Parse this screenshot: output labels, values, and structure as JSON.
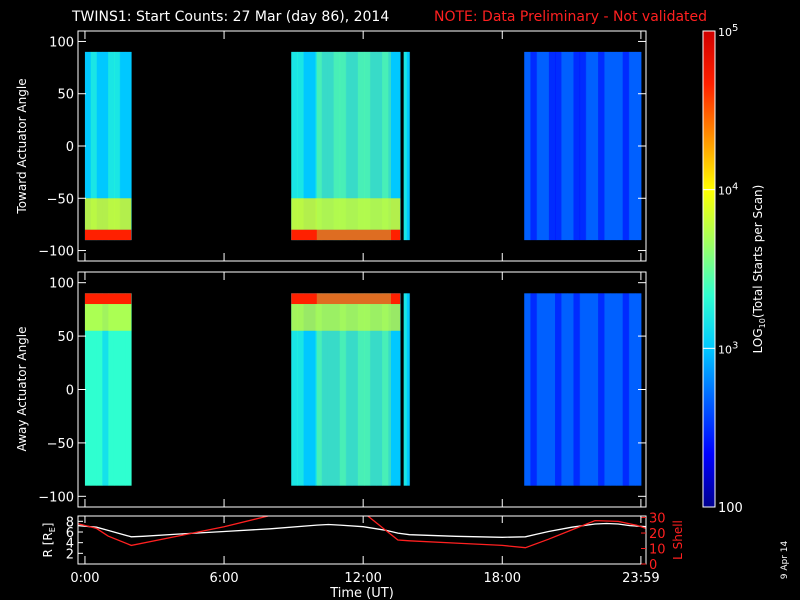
{
  "title": {
    "main": "TWINS1: Start Counts: 27 Mar (day  86), 2014",
    "note": "NOTE: Data Preliminary - Not validated",
    "note_color": "#ff2020"
  },
  "date_stamp": "9 Apr 14",
  "chart_data": [
    {
      "type": "heatmap",
      "name": "toward",
      "ylabel": "Toward Actuator Angle",
      "ylim": [
        -110,
        110
      ],
      "yticks": [
        "100",
        "50",
        "0",
        "−50",
        "−100"
      ],
      "ytick_values": [
        100,
        50,
        0,
        -50,
        -100
      ],
      "angle_range": [
        -90,
        90
      ],
      "x_unit": "hours UT",
      "segments": [
        {
          "x": [
            0.0,
            2.0
          ],
          "level": 3.1,
          "hot_low_edge": true
        },
        {
          "x": [
            8.9,
            13.6
          ],
          "level": 3.15,
          "hot_low_edge": true,
          "gradient_band": [
            10.0,
            13.2
          ]
        },
        {
          "x": [
            13.75,
            14.0
          ],
          "level": 3.1
        },
        {
          "x": [
            18.95,
            23.99
          ],
          "level": 2.55
        }
      ]
    },
    {
      "type": "heatmap",
      "name": "away",
      "ylabel": "Away Actuator Angle",
      "ylim": [
        -110,
        110
      ],
      "yticks": [
        "100",
        "50",
        "0",
        "−50",
        "−100"
      ],
      "ytick_values": [
        100,
        50,
        0,
        -50,
        -100
      ],
      "angle_range": [
        -90,
        90
      ],
      "x_unit": "hours UT",
      "segments": [
        {
          "x": [
            0.0,
            2.0
          ],
          "level": 3.3,
          "hot_high_edge": true
        },
        {
          "x": [
            8.9,
            13.6
          ],
          "level": 3.1,
          "hot_high_edge": true,
          "gradient_band": [
            10.0,
            13.2
          ]
        },
        {
          "x": [
            13.75,
            14.0
          ],
          "level": 3.1
        },
        {
          "x": [
            18.95,
            23.99
          ],
          "level": 2.6
        }
      ]
    },
    {
      "type": "line",
      "name": "orbit",
      "ylabel": "R [RE]",
      "ylabel_sub": "E",
      "ylabel_base": "R [R",
      "ylabel_close": "]",
      "yticks": [
        "8",
        "6",
        "4",
        "2"
      ],
      "ytick_values": [
        8,
        6,
        4,
        2
      ],
      "ylim": [
        0,
        9
      ],
      "y2label": "L Shell",
      "y2ticks": [
        "30",
        "20",
        "10",
        "0"
      ],
      "y2tick_values": [
        30,
        20,
        10,
        0
      ],
      "y2lim": [
        0,
        31
      ],
      "xlabel": "Time (UT)",
      "xticks": [
        "0:00",
        "6:00",
        "12:00",
        "18:00",
        "23:59"
      ],
      "xtick_values": [
        0.0,
        6.0,
        12.0,
        18.0,
        23.98
      ],
      "xlim": [
        -0.3,
        24.2
      ],
      "series": [
        {
          "axis": "R",
          "color": "#ffffff",
          "x": [
            -0.3,
            0.5,
            1.0,
            1.5,
            2.0,
            2.5,
            4.0,
            6.0,
            8.0,
            10.0,
            10.5,
            11.0,
            12.0,
            13.0,
            13.5,
            14.0,
            16.0,
            18.0,
            19.0,
            19.5,
            20.0,
            21.0,
            22.0,
            22.5,
            23.0,
            23.5,
            24.2
          ],
          "y": [
            7.2,
            6.9,
            6.3,
            5.7,
            5.1,
            5.2,
            5.6,
            6.1,
            6.6,
            7.3,
            7.4,
            7.3,
            7.0,
            6.3,
            5.8,
            5.5,
            5.2,
            5.0,
            5.1,
            5.6,
            6.1,
            6.9,
            7.5,
            7.6,
            7.5,
            7.2,
            7.0
          ]
        },
        {
          "axis": "L",
          "color": "#ff2020",
          "x": [
            -0.3,
            0.5,
            1.0,
            2.0,
            4.0,
            6.0,
            7.9,
            8.5,
            11.8,
            12.2,
            13.5,
            14.0,
            16.0,
            18.0,
            19.0,
            20.0,
            21.0,
            22.0,
            23.0,
            23.8,
            24.2
          ],
          "y": [
            26.0,
            23.0,
            18.0,
            12.0,
            18.0,
            24.0,
            31.0,
            null,
            null,
            31.0,
            15.5,
            15.0,
            13.5,
            12.0,
            10.5,
            16.0,
            22.0,
            28.0,
            27.5,
            25.0,
            23.0
          ]
        }
      ]
    }
  ],
  "colorbar": {
    "label": "LOG10(Total Starts per Scan)",
    "label_base": "LOG",
    "label_sub": "10",
    "label_rest": "(Total Starts per Scan)",
    "ticks": [
      {
        "base": "10",
        "exp": "5",
        "value": 5
      },
      {
        "base": "10",
        "exp": "4",
        "value": 4
      },
      {
        "base": "10",
        "exp": "3",
        "value": 3
      },
      {
        "base": "100",
        "exp": "",
        "value": 2
      }
    ],
    "range": [
      2,
      5
    ],
    "colors": [
      "#00008f",
      "#0000ff",
      "#0060ff",
      "#00c8ff",
      "#30ffd0",
      "#a0ff60",
      "#ffff00",
      "#ff9000",
      "#ff2000",
      "#d00000"
    ]
  }
}
